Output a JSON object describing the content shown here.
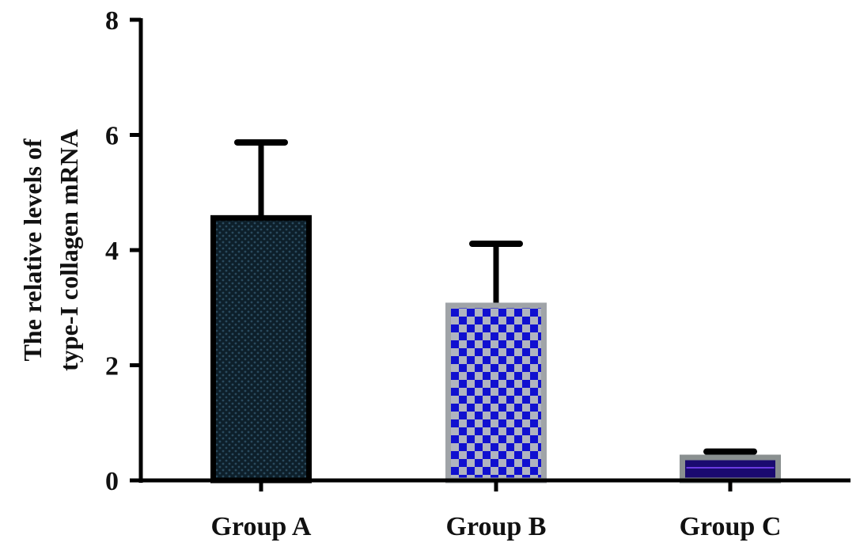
{
  "chart_data": {
    "type": "bar",
    "title": "",
    "xlabel": "",
    "ylabel": [
      "The relative levels of",
      "type-I collagen mRNA"
    ],
    "ylim": [
      0,
      8
    ],
    "yticks": [
      0,
      2,
      4,
      6,
      8
    ],
    "grid": false,
    "categories": [
      "Group A",
      "Group B",
      "Group C"
    ],
    "values": [
      4.6,
      3.08,
      0.44
    ],
    "error_upper": [
      5.87,
      4.11,
      0.5
    ],
    "colors": {
      "Group A": {
        "fill": "#0d1f2a",
        "dots": "#2a4a5e",
        "border": "#000000"
      },
      "Group B": {
        "fill": "#b0b4c0",
        "checks": "#1010d0",
        "border": "#a0a4a8"
      },
      "Group C": {
        "fill": "#1a0a70",
        "stripe": "#6a3ae0",
        "border": "#8a9090"
      }
    }
  }
}
